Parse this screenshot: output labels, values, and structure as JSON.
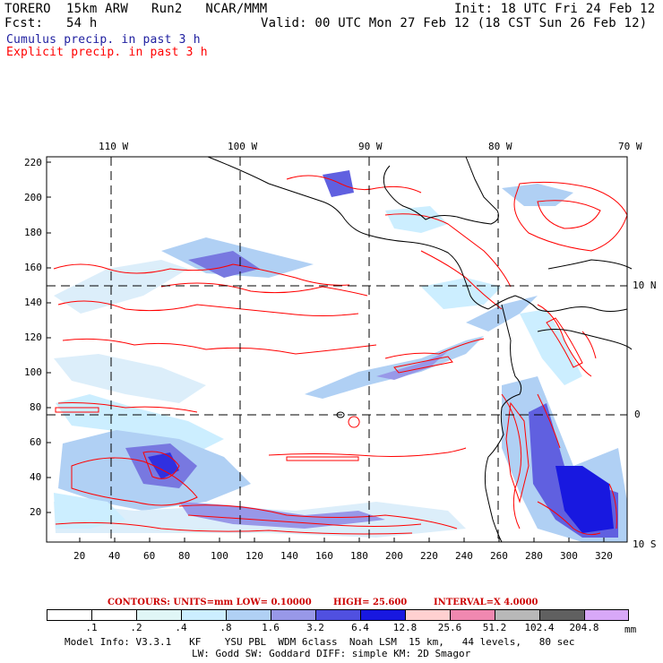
{
  "header": {
    "model": "TORERO  15km ARW   Run2   NCAR/MMM",
    "init": "Init: 18 UTC Fri 24 Feb 12",
    "fcst": "Fcst:   54 h",
    "valid": "Valid: 00 UTC Mon 27 Feb 12 (18 CST Sun 26 Feb 12)",
    "cumulus_label": "Cumulus precip. in past 3 h",
    "explicit_label": "Explicit precip. in past 3 h"
  },
  "colors": {
    "cumulus": "#2020a0",
    "explicit": "#ff0000",
    "coast": "#000000",
    "contour_text": "#cc0000"
  },
  "map": {
    "lon_labels": [
      "110 W",
      "100 W",
      "90 W",
      "80 W",
      "70 W"
    ],
    "lat_labels_right": [
      "10 N",
      "0",
      "10 S"
    ],
    "y_ticks": [
      "220",
      "200",
      "180",
      "160",
      "140",
      "120",
      "100",
      "80",
      "60",
      "40",
      "20"
    ],
    "x_ticks": [
      "20",
      "40",
      "60",
      "80",
      "100",
      "120",
      "140",
      "160",
      "180",
      "200",
      "220",
      "240",
      "260",
      "280",
      "300",
      "320"
    ]
  },
  "contours": {
    "units": "CONTOURS:  UNITS=mm  LOW= 0.10000",
    "high": "HIGH=  25.600",
    "interval": "INTERVAL=X  4.0000"
  },
  "colorbar": {
    "ticks": [
      ".1",
      ".2",
      ".4",
      ".8",
      "1.6",
      "3.2",
      "6.4",
      "12.8",
      "25.6",
      "51.2",
      "102.4",
      "204.8"
    ],
    "colors": [
      "#ffffff",
      "#ffffff",
      "#e0f6f6",
      "#cceeff",
      "#b0d0f4",
      "#9898e8",
      "#5050e0",
      "#1818e0",
      "#ffd0d0",
      "#f088b0",
      "#b8b8b8",
      "#606060",
      "#d8a8f8"
    ],
    "unit": "mm"
  },
  "footer": {
    "line1": "Model Info: V3.3.1   KF    YSU PBL  WDM 6class  Noah LSM  15 km,   44 levels,   80 sec",
    "line2": "LW: Godd SW: Goddard DIFF: simple KM: 2D Smagor"
  }
}
